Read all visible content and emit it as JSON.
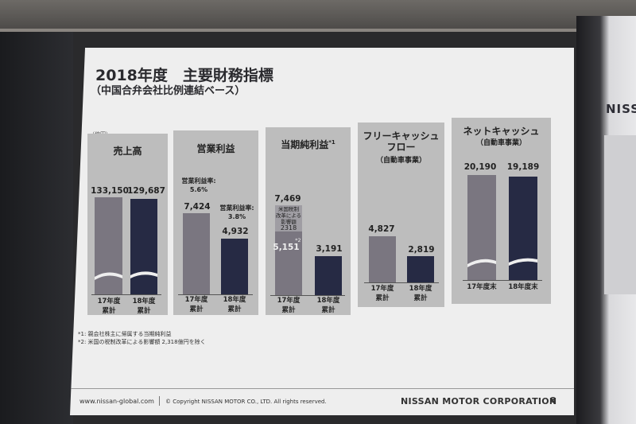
{
  "slide": {
    "title": "2018年度　主要財務指標",
    "subtitle": "（中国合弁会社比例連結ベース）",
    "unit": "（億円）",
    "footnotes": [
      "*1: 親会社株主に帰属する当期純利益",
      "*2: 米国の税制改革による影響額 2,318億円を除く"
    ],
    "footer": {
      "url": "www.nissan-global.com",
      "copyright": "© Copyright NISSAN MOTOR CO., LTD. All rights reserved.",
      "company": "NISSAN MOTOR CORPORATION",
      "page": "8"
    }
  },
  "room": {
    "sign_text": "NISS"
  },
  "chart_data": [
    {
      "type": "bar",
      "title": "売上高",
      "categories": [
        "17年度\n累計",
        "18年度\n累計"
      ],
      "values": [
        133150,
        129687
      ],
      "value_labels": [
        "133,150",
        "129,687"
      ],
      "axis_break": true
    },
    {
      "type": "bar",
      "title": "営業利益",
      "categories": [
        "17年度\n累計",
        "18年度\n累計"
      ],
      "values": [
        7424,
        4932
      ],
      "value_labels": [
        "7,424",
        "4,932"
      ],
      "annotations": [
        "営業利益率:\n5.6%",
        "営業利益率:\n3.8%"
      ]
    },
    {
      "type": "bar",
      "title": "当期純利益",
      "title_note": "*1",
      "categories": [
        "17年度\n累計",
        "18年度\n累計"
      ],
      "values": [
        7469,
        3191
      ],
      "value_labels": [
        "7,469",
        "3,191"
      ],
      "stack": {
        "base": 5151,
        "base_label": "5,151",
        "base_note": "*2",
        "extra": 2318,
        "extra_label": "2318",
        "extra_caption": "米国税制\n改革による\n影響額"
      }
    },
    {
      "type": "bar",
      "title": "フリーキャッシュ\nフロー",
      "subtitle": "（自動車事業）",
      "categories": [
        "17年度\n累計",
        "18年度\n累計"
      ],
      "values": [
        4827,
        2819
      ],
      "value_labels": [
        "4,827",
        "2,819"
      ]
    },
    {
      "type": "bar",
      "title": "ネットキャッシュ",
      "subtitle": "（自動車事業）",
      "categories": [
        "17年度末",
        "18年度末"
      ],
      "values": [
        20190,
        19189
      ],
      "value_labels": [
        "20,190",
        "19,189"
      ],
      "axis_break": true
    }
  ],
  "colors": {
    "fy17": "#7a7680",
    "fy18": "#262a44",
    "panel": "#bdbdbd",
    "slide": "#eeeeee"
  }
}
